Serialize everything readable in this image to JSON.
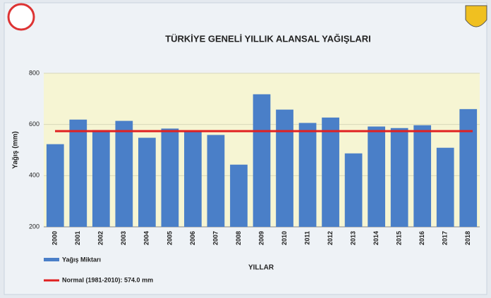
{
  "chart_data": {
    "type": "bar",
    "title": "TÜRKİYE GENELİ  YILLIK ALANSAL YAĞIŞLARI",
    "x_label": "YILLAR",
    "y_label": "Yağış (mm)",
    "categories": [
      "2000",
      "2001",
      "2002",
      "2003",
      "2004",
      "2005",
      "2006",
      "2007",
      "2008",
      "2009",
      "2010",
      "2011",
      "2012",
      "2013",
      "2014",
      "2015",
      "2016",
      "2017",
      "2018"
    ],
    "series": [
      {
        "name": "Yağış Miktarı",
        "color": "#4a7fc8",
        "values": [
          523,
          619,
          578,
          614,
          548,
          584,
          575,
          559,
          443,
          718,
          658,
          606,
          627,
          487,
          592,
          586,
          597,
          509,
          660
        ]
      }
    ],
    "reference_line": {
      "name": "Normal (1981-2010): 574.0 mm",
      "value": 574,
      "color": "#e02020"
    },
    "ylim": [
      200,
      800
    ],
    "yticks": [
      200,
      400,
      600,
      800
    ],
    "grid": true
  }
}
